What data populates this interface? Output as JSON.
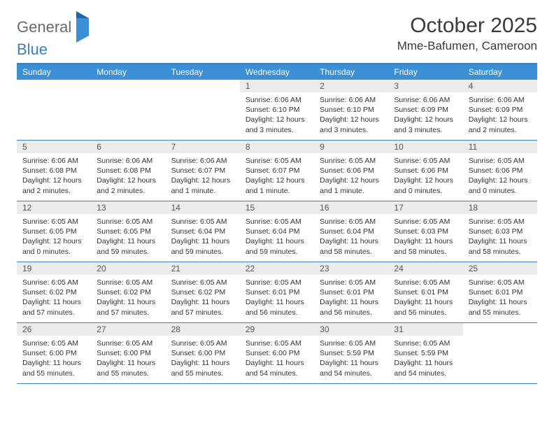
{
  "logo": {
    "text1": "General",
    "text2": "Blue"
  },
  "title": "October 2025",
  "location": "Mme-Bafumen, Cameroon",
  "header_bg": "#3b8fd4",
  "header_fg": "#ffffff",
  "row_border": "#3b7fc4",
  "daynum_bg": "#ececec",
  "days": [
    "Sunday",
    "Monday",
    "Tuesday",
    "Wednesday",
    "Thursday",
    "Friday",
    "Saturday"
  ],
  "weeks": [
    [
      {
        "n": "",
        "empty": true
      },
      {
        "n": "",
        "empty": true
      },
      {
        "n": "",
        "empty": true
      },
      {
        "n": "1",
        "sunrise": "6:06 AM",
        "sunset": "6:10 PM",
        "daylight": "12 hours and 3 minutes."
      },
      {
        "n": "2",
        "sunrise": "6:06 AM",
        "sunset": "6:10 PM",
        "daylight": "12 hours and 3 minutes."
      },
      {
        "n": "3",
        "sunrise": "6:06 AM",
        "sunset": "6:09 PM",
        "daylight": "12 hours and 3 minutes."
      },
      {
        "n": "4",
        "sunrise": "6:06 AM",
        "sunset": "6:09 PM",
        "daylight": "12 hours and 2 minutes."
      }
    ],
    [
      {
        "n": "5",
        "sunrise": "6:06 AM",
        "sunset": "6:08 PM",
        "daylight": "12 hours and 2 minutes."
      },
      {
        "n": "6",
        "sunrise": "6:06 AM",
        "sunset": "6:08 PM",
        "daylight": "12 hours and 2 minutes."
      },
      {
        "n": "7",
        "sunrise": "6:06 AM",
        "sunset": "6:07 PM",
        "daylight": "12 hours and 1 minute."
      },
      {
        "n": "8",
        "sunrise": "6:05 AM",
        "sunset": "6:07 PM",
        "daylight": "12 hours and 1 minute."
      },
      {
        "n": "9",
        "sunrise": "6:05 AM",
        "sunset": "6:06 PM",
        "daylight": "12 hours and 1 minute."
      },
      {
        "n": "10",
        "sunrise": "6:05 AM",
        "sunset": "6:06 PM",
        "daylight": "12 hours and 0 minutes."
      },
      {
        "n": "11",
        "sunrise": "6:05 AM",
        "sunset": "6:06 PM",
        "daylight": "12 hours and 0 minutes."
      }
    ],
    [
      {
        "n": "12",
        "sunrise": "6:05 AM",
        "sunset": "6:05 PM",
        "daylight": "12 hours and 0 minutes."
      },
      {
        "n": "13",
        "sunrise": "6:05 AM",
        "sunset": "6:05 PM",
        "daylight": "11 hours and 59 minutes."
      },
      {
        "n": "14",
        "sunrise": "6:05 AM",
        "sunset": "6:04 PM",
        "daylight": "11 hours and 59 minutes."
      },
      {
        "n": "15",
        "sunrise": "6:05 AM",
        "sunset": "6:04 PM",
        "daylight": "11 hours and 59 minutes."
      },
      {
        "n": "16",
        "sunrise": "6:05 AM",
        "sunset": "6:04 PM",
        "daylight": "11 hours and 58 minutes."
      },
      {
        "n": "17",
        "sunrise": "6:05 AM",
        "sunset": "6:03 PM",
        "daylight": "11 hours and 58 minutes."
      },
      {
        "n": "18",
        "sunrise": "6:05 AM",
        "sunset": "6:03 PM",
        "daylight": "11 hours and 58 minutes."
      }
    ],
    [
      {
        "n": "19",
        "sunrise": "6:05 AM",
        "sunset": "6:02 PM",
        "daylight": "11 hours and 57 minutes."
      },
      {
        "n": "20",
        "sunrise": "6:05 AM",
        "sunset": "6:02 PM",
        "daylight": "11 hours and 57 minutes."
      },
      {
        "n": "21",
        "sunrise": "6:05 AM",
        "sunset": "6:02 PM",
        "daylight": "11 hours and 57 minutes."
      },
      {
        "n": "22",
        "sunrise": "6:05 AM",
        "sunset": "6:01 PM",
        "daylight": "11 hours and 56 minutes."
      },
      {
        "n": "23",
        "sunrise": "6:05 AM",
        "sunset": "6:01 PM",
        "daylight": "11 hours and 56 minutes."
      },
      {
        "n": "24",
        "sunrise": "6:05 AM",
        "sunset": "6:01 PM",
        "daylight": "11 hours and 56 minutes."
      },
      {
        "n": "25",
        "sunrise": "6:05 AM",
        "sunset": "6:01 PM",
        "daylight": "11 hours and 55 minutes."
      }
    ],
    [
      {
        "n": "26",
        "sunrise": "6:05 AM",
        "sunset": "6:00 PM",
        "daylight": "11 hours and 55 minutes."
      },
      {
        "n": "27",
        "sunrise": "6:05 AM",
        "sunset": "6:00 PM",
        "daylight": "11 hours and 55 minutes."
      },
      {
        "n": "28",
        "sunrise": "6:05 AM",
        "sunset": "6:00 PM",
        "daylight": "11 hours and 55 minutes."
      },
      {
        "n": "29",
        "sunrise": "6:05 AM",
        "sunset": "6:00 PM",
        "daylight": "11 hours and 54 minutes."
      },
      {
        "n": "30",
        "sunrise": "6:05 AM",
        "sunset": "5:59 PM",
        "daylight": "11 hours and 54 minutes."
      },
      {
        "n": "31",
        "sunrise": "6:05 AM",
        "sunset": "5:59 PM",
        "daylight": "11 hours and 54 minutes."
      },
      {
        "n": "",
        "empty": true
      }
    ]
  ],
  "labels": {
    "sunrise": "Sunrise:",
    "sunset": "Sunset:",
    "daylight": "Daylight:"
  },
  "typography": {
    "title_fontsize": 30,
    "location_fontsize": 17,
    "dayhead_fontsize": 12,
    "daynum_fontsize": 12,
    "details_fontsize": 10.5
  }
}
